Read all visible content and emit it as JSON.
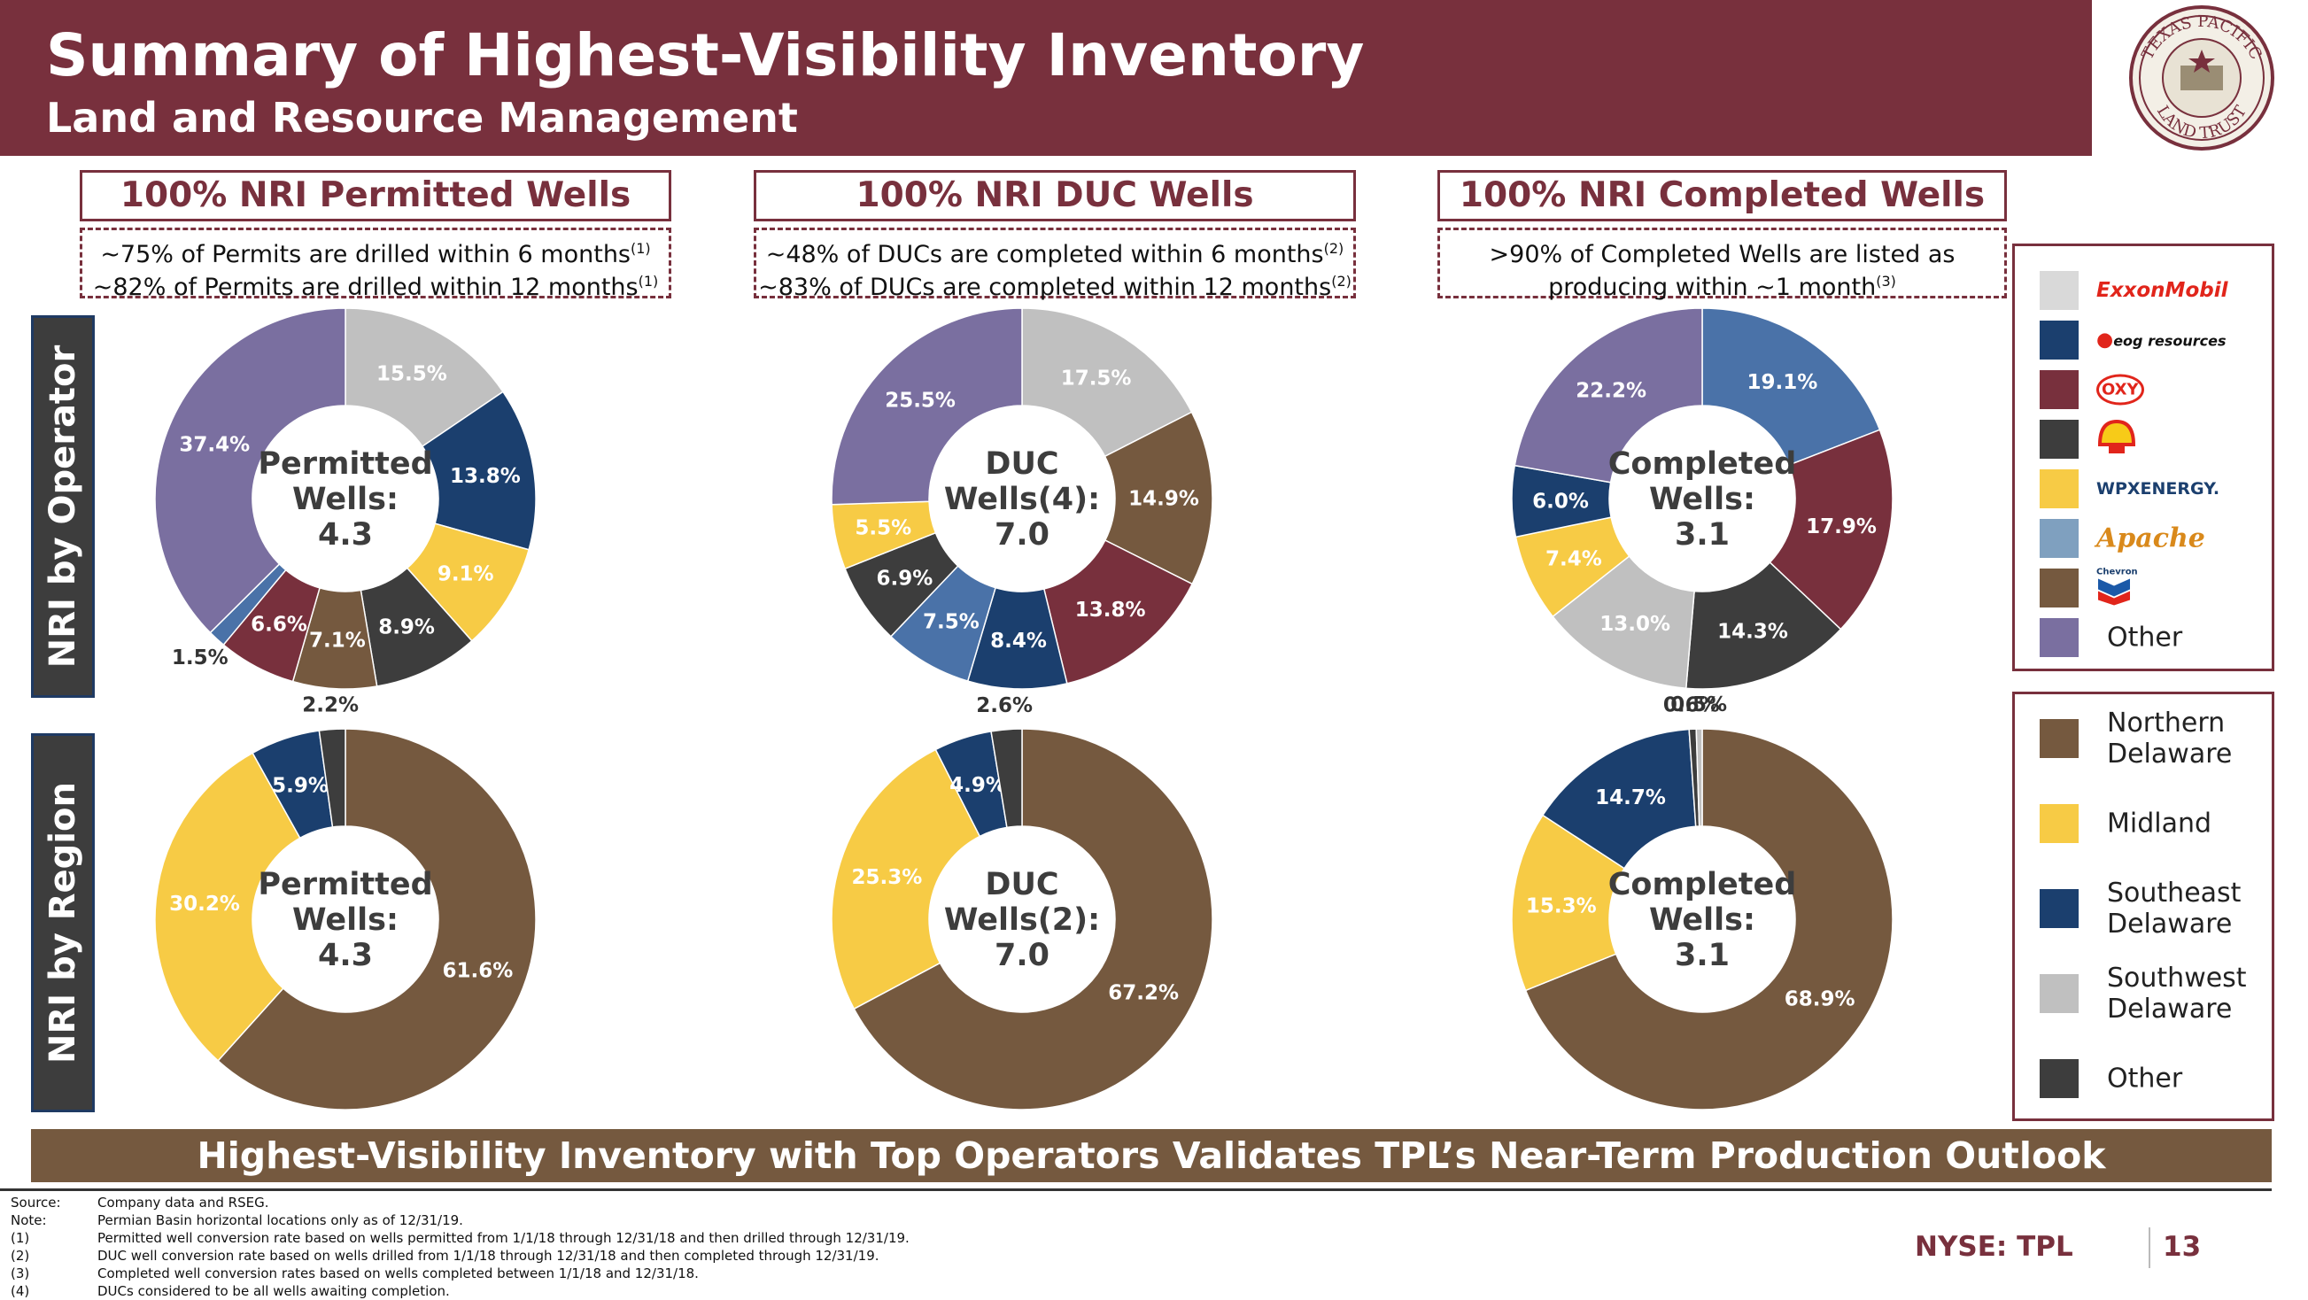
{
  "header": {
    "title": "Summary of Highest-Visibility Inventory",
    "subtitle": "Land and Resource Management",
    "logo_text_top": "TEXAS PACIFIC",
    "logo_text_bottom": "LAND TRUST"
  },
  "columns": [
    {
      "title": "100%  NRI Permitted Wells",
      "note_line1": "~75% of Permits are drilled within 6 months",
      "note_sup1": "(1)",
      "note_line2": "~82% of Permits are drilled within 12 months",
      "note_sup2": "(1)"
    },
    {
      "title": "100% NRI DUC Wells",
      "note_line1": "~48% of DUCs are completed within 6 months",
      "note_sup1": "(2)",
      "note_line2": "~83% of DUCs are completed within 12 months",
      "note_sup2": "(2)"
    },
    {
      "title": "100%  NRI Completed Wells",
      "note_line1": ">90% of Completed Wells are listed as",
      "note_sup1": "",
      "note_line2": "producing within ~1 month",
      "note_sup2": "(3)"
    }
  ],
  "row_labels": {
    "operator": "NRI by Operator",
    "region": "NRI by Region"
  },
  "operator_legend": [
    {
      "label": "ExxonMobil",
      "color": "#d9d9d9",
      "icon": "exxonmobil-logo"
    },
    {
      "label": "eog resources",
      "color": "#1b3f6e",
      "icon": "eog-logo"
    },
    {
      "label": "OXY",
      "color": "#78303d",
      "icon": "oxy-logo"
    },
    {
      "label": "Shell",
      "color": "#3d3d3d",
      "icon": "shell-logo"
    },
    {
      "label": "WPXENERGY.",
      "color": "#f7cb45",
      "icon": "wpx-logo"
    },
    {
      "label": "Apache",
      "color": "#7fa0bf",
      "icon": "apache-logo"
    },
    {
      "label": "Chevron",
      "color": "#75593f",
      "icon": "chevron-logo"
    },
    {
      "label": "Other",
      "color": "#7a6fa0",
      "icon": ""
    }
  ],
  "region_legend": [
    {
      "label": "Northern Delaware",
      "color": "#75593f"
    },
    {
      "label": "Midland",
      "color": "#f7cb45"
    },
    {
      "label": "Southeast Delaware",
      "color": "#1b3f6e"
    },
    {
      "label": "Southwest Delaware",
      "color": "#c0c0c0"
    },
    {
      "label": "Other",
      "color": "#3d3d3d"
    }
  ],
  "chart_data": [
    {
      "type": "pie",
      "title": "",
      "center_lines": [
        "Permitted",
        "Wells:",
        "4.3"
      ],
      "slices": [
        {
          "label": "ExxonMobil",
          "value": 15.5,
          "color": "#c0c0c0",
          "text": "15.5%"
        },
        {
          "label": "eog resources",
          "value": 13.8,
          "color": "#1b3f6e",
          "text": "13.8%"
        },
        {
          "label": "WPXENERGY.",
          "value": 9.1,
          "color": "#f7cb45",
          "text": "9.1%"
        },
        {
          "label": "Shell",
          "value": 8.9,
          "color": "#3d3d3d",
          "text": "8.9%"
        },
        {
          "label": "Chevron",
          "value": 7.1,
          "color": "#75593f",
          "text": "7.1%"
        },
        {
          "label": "OXY",
          "value": 6.6,
          "color": "#78303d",
          "text": "6.6%"
        },
        {
          "label": "Apache",
          "value": 1.5,
          "color": "#4a72a8",
          "text": "1.5%"
        },
        {
          "label": "Other",
          "value": 37.4,
          "color": "#7a6fa0",
          "text": "37.4%"
        }
      ]
    },
    {
      "type": "pie",
      "title": "",
      "center_lines": [
        "DUC",
        "Wells(4):",
        "7.0"
      ],
      "slices": [
        {
          "label": "ExxonMobil",
          "value": 17.5,
          "color": "#c0c0c0",
          "text": "17.5%"
        },
        {
          "label": "Chevron",
          "value": 14.9,
          "color": "#75593f",
          "text": "14.9%"
        },
        {
          "label": "OXY",
          "value": 13.8,
          "color": "#78303d",
          "text": "13.8%"
        },
        {
          "label": "eog resources",
          "value": 8.4,
          "color": "#1b3f6e",
          "text": "8.4%"
        },
        {
          "label": "Apache",
          "value": 7.5,
          "color": "#4a72a8",
          "text": "7.5%"
        },
        {
          "label": "Shell",
          "value": 6.9,
          "color": "#3d3d3d",
          "text": "6.9%"
        },
        {
          "label": "WPXENERGY.",
          "value": 5.5,
          "color": "#f7cb45",
          "text": "5.5%"
        },
        {
          "label": "Other",
          "value": 25.5,
          "color": "#7a6fa0",
          "text": "25.5%"
        }
      ]
    },
    {
      "type": "pie",
      "title": "",
      "center_lines": [
        "Completed",
        "Wells:",
        "3.1"
      ],
      "slices": [
        {
          "label": "Apache",
          "value": 19.1,
          "color": "#4a72a8",
          "text": "19.1%"
        },
        {
          "label": "OXY",
          "value": 17.9,
          "color": "#78303d",
          "text": "17.9%"
        },
        {
          "label": "Shell",
          "value": 14.3,
          "color": "#3d3d3d",
          "text": "14.3%"
        },
        {
          "label": "ExxonMobil",
          "value": 13.0,
          "color": "#c0c0c0",
          "text": "13.0%"
        },
        {
          "label": "WPXENERGY.",
          "value": 7.4,
          "color": "#f7cb45",
          "text": "7.4%"
        },
        {
          "label": "eog resources",
          "value": 6.0,
          "color": "#1b3f6e",
          "text": "6.0%"
        },
        {
          "label": "Other",
          "value": 22.2,
          "color": "#7a6fa0",
          "text": "22.2%"
        }
      ]
    },
    {
      "type": "pie",
      "title": "",
      "center_lines": [
        "Permitted",
        "Wells:",
        "4.3"
      ],
      "slices": [
        {
          "label": "Northern Delaware",
          "value": 61.6,
          "color": "#75593f",
          "text": "61.6%"
        },
        {
          "label": "Midland",
          "value": 30.2,
          "color": "#f7cb45",
          "text": "30.2%"
        },
        {
          "label": "Southeast Delaware",
          "value": 5.9,
          "color": "#1b3f6e",
          "text": "5.9%"
        },
        {
          "label": "Other",
          "value": 2.2,
          "color": "#3d3d3d",
          "text": "2.2%"
        }
      ]
    },
    {
      "type": "pie",
      "title": "",
      "center_lines": [
        "DUC",
        "Wells(2):",
        "7.0"
      ],
      "slices": [
        {
          "label": "Northern Delaware",
          "value": 67.2,
          "color": "#75593f",
          "text": "67.2%"
        },
        {
          "label": "Midland",
          "value": 25.3,
          "color": "#f7cb45",
          "text": "25.3%"
        },
        {
          "label": "Southeast Delaware",
          "value": 4.9,
          "color": "#1b3f6e",
          "text": "4.9%"
        },
        {
          "label": "Other",
          "value": 2.6,
          "color": "#3d3d3d",
          "text": "2.6%"
        }
      ]
    },
    {
      "type": "pie",
      "title": "",
      "center_lines": [
        "Completed",
        "Wells:",
        "3.1"
      ],
      "slices": [
        {
          "label": "Northern Delaware",
          "value": 68.9,
          "color": "#75593f",
          "text": "68.9%"
        },
        {
          "label": "Midland",
          "value": 15.3,
          "color": "#f7cb45",
          "text": "15.3%"
        },
        {
          "label": "Southeast Delaware",
          "value": 14.7,
          "color": "#1b3f6e",
          "text": "14.7%"
        },
        {
          "label": "Other",
          "value": 0.6,
          "color": "#3d3d3d",
          "text": "0.6%"
        },
        {
          "label": "Southwest Delaware",
          "value": 0.5,
          "color": "#c0c0c0",
          "text": "0.5%"
        }
      ]
    }
  ],
  "banner": "Highest-Visibility Inventory with Top Operators Validates TPL’s Near-Term Production Outlook",
  "footnotes": [
    {
      "key": "Source:",
      "text": "Company data and RSEG."
    },
    {
      "key": "Note:",
      "text": "Permian Basin horizontal locations only as of 12/31/19."
    },
    {
      "key": "(1)",
      "text": "Permitted well conversion rate based on wells permitted from 1/1/18 through 12/31/18 and then drilled through 12/31/19."
    },
    {
      "key": "(2)",
      "text": "DUC well conversion rate based on wells drilled from 1/1/18 through 12/31/18 and then completed through 12/31/19."
    },
    {
      "key": "(3)",
      "text": "Completed well conversion rates based on wells completed between 1/1/18 and 12/31/18."
    },
    {
      "key": "(4)",
      "text": "DUCs considered to be all wells awaiting completion."
    }
  ],
  "footer": {
    "ticker": "NYSE: TPL",
    "page": "13"
  }
}
